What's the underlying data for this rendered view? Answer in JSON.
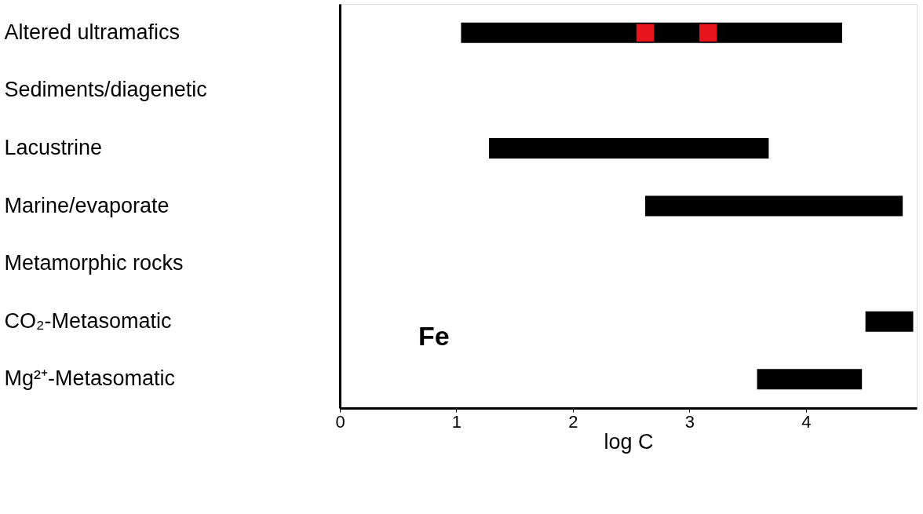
{
  "chart_data": {
    "type": "bar",
    "orientation": "horizontal",
    "xlabel": "log C",
    "categories": [
      "Altered ultramafics",
      "Sediments/diagenetic",
      "Lacustrine",
      "Marine/evaporate",
      "Metamorphic rocks",
      "CO₂-Metasomatic",
      "Mg²⁺-Metasomatic"
    ],
    "series": [
      {
        "color": "#000000",
        "base": [
          1.04,
          null,
          1.28,
          2.62,
          null,
          4.51,
          3.58
        ],
        "values": [
          3.27,
          null,
          2.4,
          2.21,
          null,
          0.41,
          0.9
        ]
      },
      {
        "type": "scatter",
        "marker": "square",
        "color": "#e8141c",
        "x": [
          "Altered ultramafics",
          "Altered ultramafics"
        ],
        "values": [
          2.62,
          3.16
        ]
      }
    ],
    "xlim": [
      0,
      4.95
    ],
    "xticks": [
      0,
      1,
      2,
      3,
      4
    ],
    "grid": false,
    "legend": false,
    "annotations": [
      "Fe"
    ]
  }
}
